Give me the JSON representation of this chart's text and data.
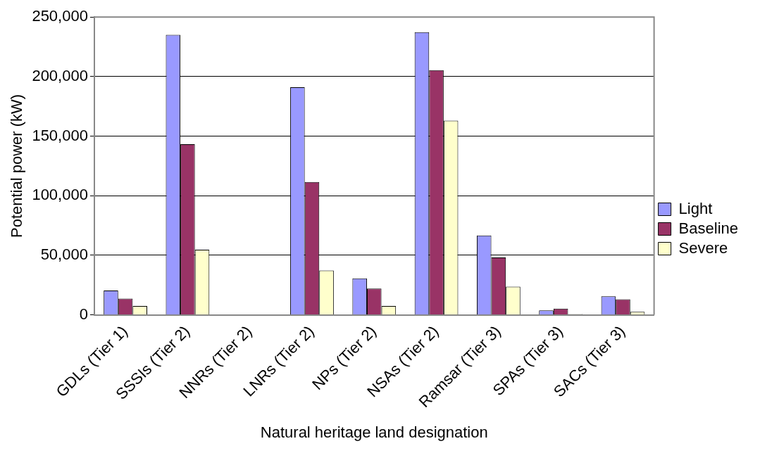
{
  "chart_data": {
    "type": "bar",
    "xlabel": "Natural heritage land designation",
    "ylabel": "Potential power (kW)",
    "categories": [
      "GDLs (Tier 1)",
      "SSSIs (Tier 2)",
      "NNRs (Tier 2)",
      "LNRs (Tier 2)",
      "NPs (Tier 2)",
      "NSAs (Tier 2)",
      "Ramsar (Tier 3)",
      "SPAs (Tier 3)",
      "SACs (Tier 3)"
    ],
    "series": [
      {
        "name": "Light",
        "color": "#9999ff",
        "values": [
          20500,
          235000,
          0,
          191000,
          30600,
          237300,
          66700,
          3800,
          15500
        ]
      },
      {
        "name": "Baseline",
        "color": "#993366",
        "values": [
          13600,
          143200,
          0,
          111500,
          22000,
          205400,
          48200,
          5200,
          13000
        ]
      },
      {
        "name": "Severe",
        "color": "#ffffcc",
        "values": [
          7500,
          54700,
          0,
          37300,
          7500,
          163100,
          23700,
          600,
          2500
        ]
      }
    ],
    "ylim": [
      0,
      250000
    ],
    "yticks": [
      0,
      {
        "value": 50000,
        "label": "50,000"
      },
      {
        "value": 100000,
        "label": "100,000"
      },
      {
        "value": 150000,
        "label": "150,000"
      },
      {
        "value": 200000,
        "label": "200,000"
      },
      {
        "value": 250000,
        "label": "250,000"
      }
    ],
    "grid": "y",
    "legend": "right"
  }
}
